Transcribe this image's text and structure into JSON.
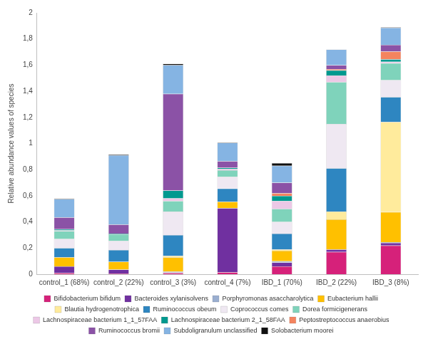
{
  "chart_data": {
    "type": "bar",
    "stacked": true,
    "y_label": "Relative abundance values of species",
    "categories": [
      "control_1 (68%)",
      "control_2 (22%)",
      "control_3 (3%)",
      "control_4 (7%)",
      "IBD_1 (70%)",
      "IBD_2 (22%)",
      "IBD_3 (8%)"
    ],
    "series": [
      {
        "name": "Bifidobacterium bifidum",
        "color": "#d6217a",
        "values": [
          0.01,
          0.005,
          0.01,
          0.015,
          0.06,
          0.17,
          0.22
        ]
      },
      {
        "name": "Bacteroides xylanisolvens",
        "color": "#7030a0",
        "values": [
          0.05,
          0.03,
          0.005,
          0.49,
          0.03,
          0.02,
          0.02
        ]
      },
      {
        "name": "Porphyromonas asaccharolytica",
        "color": "#9aaed0",
        "values": [
          0,
          0,
          0.005,
          0,
          0.01,
          0,
          0.005
        ]
      },
      {
        "name": "Eubacterium hallii",
        "color": "#ffc000",
        "values": [
          0.07,
          0.06,
          0.11,
          0.05,
          0.08,
          0.23,
          0.23
        ]
      },
      {
        "name": "Blautia hydrogenotrophica",
        "color": "#ffeb9c",
        "values": [
          0,
          0,
          0.01,
          0,
          0.01,
          0.06,
          0.69
        ]
      },
      {
        "name": "Ruminococcus obeum",
        "color": "#2e86c1",
        "values": [
          0.07,
          0.09,
          0.16,
          0.1,
          0.12,
          0.33,
          0.19
        ]
      },
      {
        "name": "Coprococcus comes",
        "color": "#efe8f2",
        "values": [
          0.07,
          0.07,
          0.18,
          0.09,
          0.09,
          0.34,
          0.13
        ]
      },
      {
        "name": "Dorea formicigenerans",
        "color": "#7fd3bb",
        "values": [
          0.06,
          0.05,
          0.08,
          0.05,
          0.1,
          0.32,
          0.13
        ]
      },
      {
        "name": "Lachnospiraceae bacterium 1_1_57FAA",
        "color": "#ecc8e6",
        "values": [
          0.005,
          0,
          0.02,
          0.01,
          0.06,
          0.05,
          0.01
        ]
      },
      {
        "name": "Lachnospiraceae bacterium 2_1_58FAA",
        "color": "#00998f",
        "values": [
          0.01,
          0.005,
          0.06,
          0.01,
          0.04,
          0.04,
          0.02
        ]
      },
      {
        "name": "Peptostreptococcus anaerobius",
        "color": "#f4845f",
        "values": [
          0,
          0,
          0,
          0,
          0.02,
          0.01,
          0.06
        ]
      },
      {
        "name": "Ruminococcus bromii",
        "color": "#8b52a6",
        "values": [
          0.09,
          0.07,
          0.74,
          0.05,
          0.08,
          0.03,
          0.05
        ]
      },
      {
        "name": "Subdoligranulum unclassified",
        "color": "#85b4e3",
        "values": [
          0.14,
          0.53,
          0.22,
          0.14,
          0.13,
          0.12,
          0.13
        ]
      },
      {
        "name": "Solobacterium moorei",
        "color": "#111111",
        "values": [
          0.005,
          0.005,
          0.01,
          0.005,
          0.02,
          0,
          0.005
        ]
      }
    ],
    "ylim": [
      0,
      2
    ],
    "yticks": [
      0,
      {
        "value": 0.2,
        "label": "0,2"
      },
      {
        "value": 0.4,
        "label": "0,4"
      },
      {
        "value": 0.6,
        "label": "0,6"
      },
      {
        "value": 0.8,
        "label": "0,8"
      },
      1,
      {
        "value": 1.2,
        "label": "1,2"
      },
      {
        "value": 1.4,
        "label": "1,4"
      },
      {
        "value": 1.6,
        "label": "1,6"
      },
      {
        "value": 1.8,
        "label": "1,8"
      },
      2
    ],
    "grid": false,
    "legend": "bottom"
  }
}
